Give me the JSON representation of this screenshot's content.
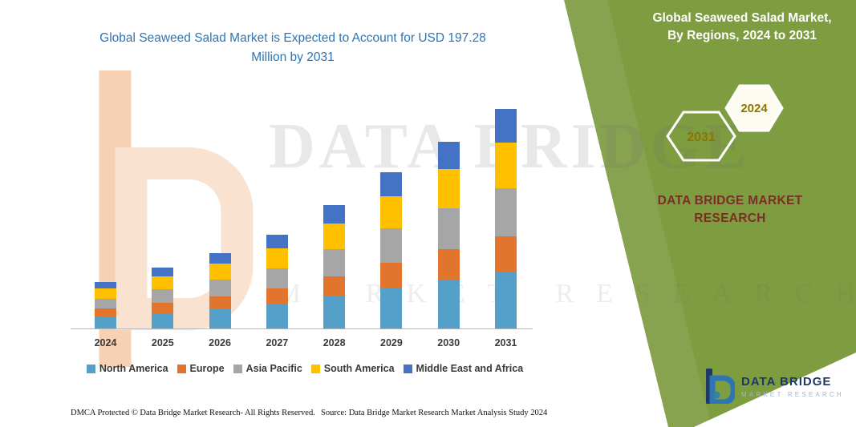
{
  "panel": {
    "title": "Global Seaweed Salad Market, By Regions, 2024 to 2031",
    "hex_left": "2031",
    "hex_right": "2024",
    "brand": "DATA BRIDGE MARKET RESEARCH",
    "green_color": "#7e9c40",
    "brand_color": "#7b2d26",
    "hex_text_color": "#8f7400"
  },
  "watermark": {
    "line1": "DATA BRIDGE",
    "line2": "MARKET RESEARCH"
  },
  "logo": {
    "name": "DATA BRIDGE",
    "tagline": "MARKET RESEARCH"
  },
  "footer": {
    "dmca": "DMCA Protected © Data Bridge Market Research-  All Rights Reserved.",
    "source": "Source: Data Bridge Market Research  Market Analysis Study 2024"
  },
  "chart_data": {
    "type": "bar",
    "stacked": true,
    "title": "Global Seaweed Salad Market is Expected to Account for USD 197.28 Million by 2031",
    "unit": "USD Million",
    "categories": [
      "2024",
      "2025",
      "2026",
      "2027",
      "2028",
      "2029",
      "2030",
      "2031"
    ],
    "series": [
      {
        "name": "North America",
        "color": "#55a0c8",
        "values": [
          11,
          14,
          18,
          22,
          29,
          36,
          44,
          51
        ]
      },
      {
        "name": "Europe",
        "color": "#e2752d",
        "values": [
          7,
          9,
          11,
          14,
          18,
          23,
          27,
          32
        ]
      },
      {
        "name": "Asia Pacific",
        "color": "#a6a6a6",
        "values": [
          9,
          12,
          15,
          18,
          24,
          31,
          37,
          43
        ]
      },
      {
        "name": "South America",
        "color": "#ffc000",
        "values": [
          9,
          12,
          14,
          18,
          23,
          29,
          35,
          41
        ]
      },
      {
        "name": "Middle East and Africa",
        "color": "#4472c4",
        "values": [
          6,
          8,
          10,
          12,
          17,
          21,
          25,
          30.28
        ]
      }
    ],
    "totals": [
      42,
      55,
      68,
      84,
      111,
      140,
      168,
      197.28
    ],
    "ylim": [
      0,
      200
    ],
    "gridlines": false,
    "legend_position": "bottom",
    "xlabel": "",
    "ylabel": ""
  }
}
